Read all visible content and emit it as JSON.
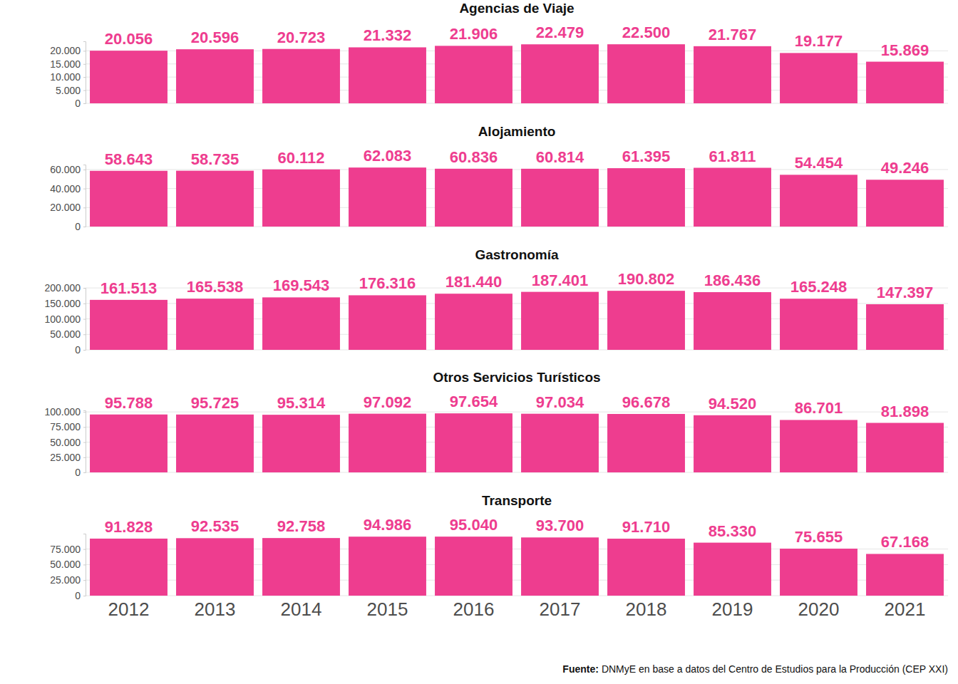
{
  "chart_data": [
    {
      "type": "bar",
      "title": "Agencias de Viaje",
      "categories": [
        "2012",
        "2013",
        "2014",
        "2015",
        "2016",
        "2017",
        "2018",
        "2019",
        "2020",
        "2021"
      ],
      "values": [
        20056,
        20596,
        20723,
        21332,
        21906,
        22479,
        22500,
        21767,
        19177,
        15869
      ],
      "value_labels": [
        "20.056",
        "20.596",
        "20.723",
        "21.332",
        "21.906",
        "22.479",
        "22.500",
        "21.767",
        "19.177",
        "15.869"
      ],
      "color": "#ee3d8f",
      "ylim": [
        0,
        23625
      ],
      "yticks": [
        0,
        {
          "value": 5000,
          "label": "5.000"
        },
        {
          "value": 10000,
          "label": "10.000"
        },
        {
          "value": 15000,
          "label": "15.000"
        },
        {
          "value": 20000,
          "label": "20.000"
        }
      ],
      "grid": true,
      "data_labels": true,
      "tick_labels": "y"
    },
    {
      "type": "bar",
      "title": "Alojamiento",
      "categories": [
        "2012",
        "2013",
        "2014",
        "2015",
        "2016",
        "2017",
        "2018",
        "2019",
        "2020",
        "2021"
      ],
      "values": [
        58643,
        58735,
        60112,
        62083,
        60836,
        60814,
        61395,
        61811,
        54454,
        49246
      ],
      "value_labels": [
        "58.643",
        "58.735",
        "60.112",
        "62.083",
        "60.836",
        "60.814",
        "61.395",
        "61.811",
        "54.454",
        "49.246"
      ],
      "color": "#ee3d8f",
      "ylim": [
        0,
        65187
      ],
      "yticks": [
        0,
        {
          "value": 20000,
          "label": "20.000"
        },
        {
          "value": 40000,
          "label": "40.000"
        },
        {
          "value": 60000,
          "label": "60.000"
        }
      ],
      "grid": true,
      "data_labels": true,
      "tick_labels": "y"
    },
    {
      "type": "bar",
      "title": "Gastronomía",
      "categories": [
        "2012",
        "2013",
        "2014",
        "2015",
        "2016",
        "2017",
        "2018",
        "2019",
        "2020",
        "2021"
      ],
      "values": [
        161513,
        165538,
        169543,
        176316,
        181440,
        187401,
        190802,
        186436,
        165248,
        147397
      ],
      "value_labels": [
        "161.513",
        "165.538",
        "169.543",
        "176.316",
        "181.440",
        "187.401",
        "190.802",
        "186.436",
        "165.248",
        "147.397"
      ],
      "color": "#ee3d8f",
      "ylim": [
        0,
        200342
      ],
      "yticks": [
        0,
        {
          "value": 50000,
          "label": "50.000"
        },
        {
          "value": 100000,
          "label": "100.000"
        },
        {
          "value": 150000,
          "label": "150.000"
        },
        {
          "value": 200000,
          "label": "200.000"
        }
      ],
      "grid": true,
      "data_labels": true,
      "tick_labels": "y"
    },
    {
      "type": "bar",
      "title": "Otros Servicios Turísticos",
      "categories": [
        "2012",
        "2013",
        "2014",
        "2015",
        "2016",
        "2017",
        "2018",
        "2019",
        "2020",
        "2021"
      ],
      "values": [
        95788,
        95725,
        95314,
        97092,
        97654,
        97034,
        96678,
        94520,
        86701,
        81898
      ],
      "value_labels": [
        "95.788",
        "95.725",
        "95.314",
        "97.092",
        "97.654",
        "97.034",
        "96.678",
        "94.520",
        "86.701",
        "81.898"
      ],
      "color": "#ee3d8f",
      "ylim": [
        0,
        102537
      ],
      "yticks": [
        0,
        {
          "value": 25000,
          "label": "25.000"
        },
        {
          "value": 50000,
          "label": "50.000"
        },
        {
          "value": 75000,
          "label": "75.000"
        },
        {
          "value": 100000,
          "label": "100.000"
        }
      ],
      "grid": true,
      "data_labels": true,
      "tick_labels": "y"
    },
    {
      "type": "bar",
      "title": "Transporte",
      "categories": [
        "2012",
        "2013",
        "2014",
        "2015",
        "2016",
        "2017",
        "2018",
        "2019",
        "2020",
        "2021"
      ],
      "values": [
        91828,
        92535,
        92758,
        94986,
        95040,
        93700,
        91710,
        85330,
        75655,
        67168
      ],
      "value_labels": [
        "91.828",
        "92.535",
        "92.758",
        "94.986",
        "95.040",
        "93.700",
        "91.710",
        "85.330",
        "75.655",
        "67.168"
      ],
      "color": "#ee3d8f",
      "ylim": [
        0,
        99792
      ],
      "yticks": [
        0,
        {
          "value": 25000,
          "label": "25.000"
        },
        {
          "value": 50000,
          "label": "50.000"
        },
        {
          "value": 75000,
          "label": "75.000"
        }
      ],
      "grid": true,
      "data_labels": true
    }
  ],
  "caption": {
    "label": "Fuente:",
    "text": "DNMyE en base a datos del Centro de Estudios para la Producción (CEP XXI)"
  }
}
